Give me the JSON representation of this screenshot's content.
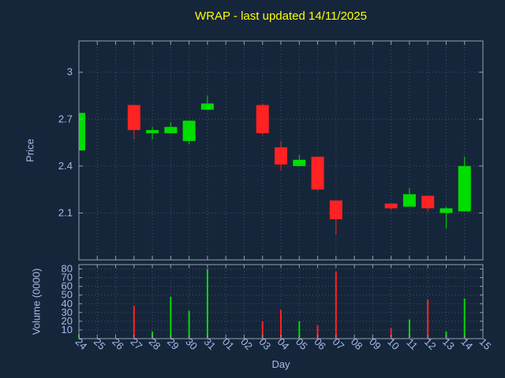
{
  "title": "WRAP - last updated 14/11/2025",
  "axes": {
    "x_label": "Day",
    "price_label": "Price",
    "volume_label": "Volume (0000)"
  },
  "colors": {
    "background": "#16263a",
    "title": "#ffff00",
    "text": "#a9b8e8",
    "grid": "#3f516e",
    "border": "#93a1b1",
    "up": "#00dd00",
    "down": "#ff2222"
  },
  "chart_data": {
    "type": "candlestick+volume",
    "title": "WRAP - last updated 14/11/2025",
    "xlabel": "Day",
    "ylabel_price": "Price",
    "ylabel_volume": "Volume (0000)",
    "x_ticks": [
      "24",
      "25",
      "26",
      "27",
      "28",
      "29",
      "30",
      "31",
      "01",
      "02",
      "03",
      "04",
      "05",
      "06",
      "07",
      "08",
      "09",
      "10",
      "11",
      "12",
      "13",
      "14",
      "15"
    ],
    "price_ticks": [
      3,
      2.7,
      2.4,
      2.1
    ],
    "price_range": [
      1.8,
      3.2
    ],
    "volume_ticks": [
      80,
      70,
      60,
      50,
      40,
      30,
      20,
      10
    ],
    "volume_range": [
      0,
      85
    ],
    "grid": true,
    "candles": [
      {
        "day": "24",
        "open": 2.5,
        "high": 2.74,
        "low": 2.5,
        "close": 2.74,
        "volume": 5
      },
      {
        "day": "27",
        "open": 2.79,
        "high": 2.79,
        "low": 2.57,
        "close": 2.63,
        "volume": 38
      },
      {
        "day": "28",
        "open": 2.61,
        "high": 2.65,
        "low": 2.57,
        "close": 2.63,
        "volume": 8
      },
      {
        "day": "29",
        "open": 2.61,
        "high": 2.68,
        "low": 2.61,
        "close": 2.65,
        "volume": 48
      },
      {
        "day": "30",
        "open": 2.56,
        "high": 2.69,
        "low": 2.54,
        "close": 2.69,
        "volume": 32
      },
      {
        "day": "31",
        "open": 2.76,
        "high": 2.85,
        "low": 2.76,
        "close": 2.8,
        "volume": 80
      },
      {
        "day": "03",
        "open": 2.79,
        "high": 2.8,
        "low": 2.6,
        "close": 2.61,
        "volume": 20
      },
      {
        "day": "04",
        "open": 2.52,
        "high": 2.56,
        "low": 2.37,
        "close": 2.41,
        "volume": 33
      },
      {
        "day": "05",
        "open": 2.4,
        "high": 2.47,
        "low": 2.4,
        "close": 2.44,
        "volume": 20
      },
      {
        "day": "06",
        "open": 2.46,
        "high": 2.46,
        "low": 2.24,
        "close": 2.25,
        "volume": 15
      },
      {
        "day": "07",
        "open": 2.18,
        "high": 2.18,
        "low": 1.96,
        "close": 2.06,
        "volume": 77
      },
      {
        "day": "10",
        "open": 2.16,
        "high": 2.16,
        "low": 2.12,
        "close": 2.13,
        "volume": 12
      },
      {
        "day": "11",
        "open": 2.14,
        "high": 2.26,
        "low": 2.14,
        "close": 2.22,
        "volume": 22
      },
      {
        "day": "12",
        "open": 2.21,
        "high": 2.21,
        "low": 2.11,
        "close": 2.13,
        "volume": 45
      },
      {
        "day": "13",
        "open": 2.1,
        "high": 2.14,
        "low": 2.0,
        "close": 2.13,
        "volume": 8
      },
      {
        "day": "14",
        "open": 2.11,
        "high": 2.46,
        "low": 2.11,
        "close": 2.4,
        "volume": 46
      }
    ]
  }
}
